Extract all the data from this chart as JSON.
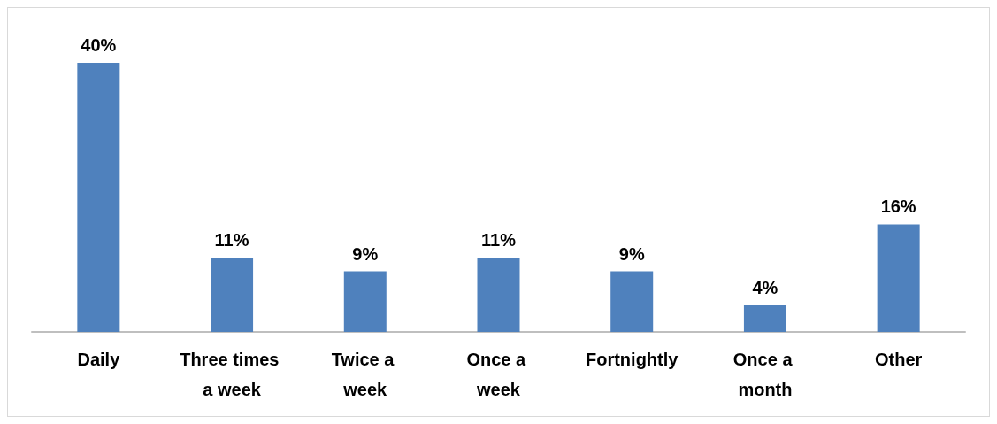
{
  "chart_data": {
    "type": "bar",
    "categories": [
      "Daily",
      "Three times a week",
      "Twice a week",
      "Once a week",
      "Fortnightly",
      "Once a month",
      "Other"
    ],
    "values": [
      40,
      11,
      9,
      11,
      9,
      4,
      16
    ],
    "value_labels": [
      "40%",
      "11%",
      "9%",
      "11%",
      "9%",
      "4%",
      "16%"
    ],
    "color": "#4f81bd"
  }
}
